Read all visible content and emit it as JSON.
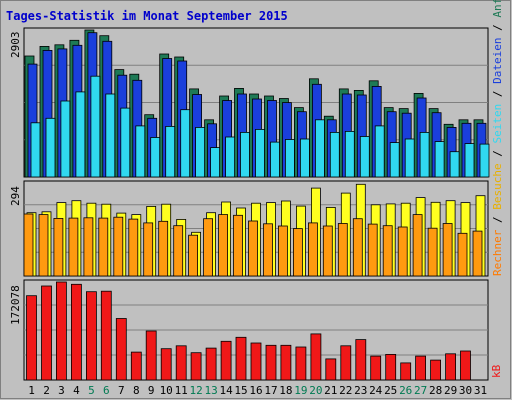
{
  "chart_data": {
    "type": "bar",
    "title": "Tages-Statistik im Monat September 2015",
    "x": [
      1,
      2,
      3,
      4,
      5,
      6,
      7,
      8,
      9,
      10,
      11,
      12,
      13,
      14,
      15,
      16,
      17,
      18,
      19,
      20,
      21,
      22,
      23,
      24,
      25,
      26,
      27,
      28,
      29,
      30,
      31
    ],
    "weekend_days": [
      5,
      6,
      12,
      13,
      19,
      20,
      26,
      27
    ],
    "panels": [
      {
        "id": "top",
        "ymax_label": "2903",
        "ymax": 2903,
        "series": [
          {
            "name": "Anfragen",
            "color": "#1e7a56",
            "values": [
              2390,
              2580,
              2610,
              2700,
              2903,
              2790,
              2120,
              2030,
              1230,
              2430,
              2370,
              1740,
              1130,
              1600,
              1750,
              1640,
              1600,
              1550,
              1370,
              1940,
              1200,
              1740,
              1710,
              1900,
              1370,
              1350,
              1650,
              1350,
              1040,
              1130,
              1130
            ]
          },
          {
            "name": "Dateien",
            "color": "#1a3fdc",
            "values": [
              2230,
              2500,
              2530,
              2600,
              2850,
              2680,
              2010,
              1910,
              1160,
              2340,
              2290,
              1630,
              1050,
              1510,
              1640,
              1540,
              1510,
              1470,
              1290,
              1830,
              1130,
              1640,
              1620,
              1790,
              1290,
              1260,
              1560,
              1270,
              980,
              1060,
              1060
            ]
          },
          {
            "name": "Seiten",
            "color": "#30d8f0",
            "values": [
              1070,
              1160,
              1500,
              1680,
              1990,
              1640,
              1360,
              1010,
              780,
              1000,
              1330,
              980,
              580,
              790,
              880,
              940,
              690,
              740,
              750,
              1130,
              880,
              900,
              800,
              1010,
              680,
              750,
              880,
              700,
              500,
              660,
              650
            ]
          }
        ]
      },
      {
        "id": "middle",
        "ymax_label": "294",
        "ymax": 294,
        "series": [
          {
            "name": "Besuche",
            "color": "#ffff20",
            "values": [
              200,
              203,
              232,
              238,
              230,
              227,
              199,
              194,
              220,
              227,
              179,
              138,
              200,
              234,
              215,
              230,
              232,
              237,
              221,
              278,
              217,
              262,
              290,
              225,
              228,
              230,
              248,
              233,
              238,
              232,
              254
            ]
          },
          {
            "name": "Rechner",
            "color": "#ff9a10",
            "values": [
              196,
              194,
              182,
              183,
              184,
              183,
              186,
              180,
              168,
              173,
              159,
              129,
              181,
              194,
              192,
              174,
              165,
              158,
              150,
              168,
              158,
              166,
              181,
              164,
              159,
              155,
              194,
              151,
              166,
              135,
              142
            ]
          }
        ]
      },
      {
        "id": "bottom",
        "ymax_label": "172078",
        "ymax": 172078,
        "series": [
          {
            "name": "kB",
            "color": "#f01818",
            "values": [
              148000,
              165000,
              172078,
              168000,
              155000,
              156000,
              108000,
              49000,
              86000,
              55000,
              60000,
              48000,
              56000,
              68000,
              75000,
              65000,
              61000,
              61000,
              58000,
              81000,
              37000,
              60000,
              71000,
              42000,
              45000,
              30000,
              42000,
              35000,
              46000,
              51000,
              0
            ]
          }
        ]
      }
    ],
    "right_labels": {
      "top": [
        "Anfragen",
        "Dateien",
        "Seiten"
      ],
      "middle": [
        "Besuche",
        "Rechner"
      ],
      "bottom": [
        "kB"
      ],
      "separator": " / ",
      "colors": {
        "Anfragen": "#1e7a56",
        "Dateien": "#1a3fdc",
        "Seiten": "#30d8f0",
        "Besuche": "#e8b000",
        "Rechner": "#ff7a00",
        "kB": "#f01818"
      }
    },
    "colors": {
      "background": "#c0c0c0",
      "plot": "#c0c0c0",
      "title": "#0000cc",
      "weekend_tick": "#007a52",
      "tick": "#000000"
    }
  }
}
